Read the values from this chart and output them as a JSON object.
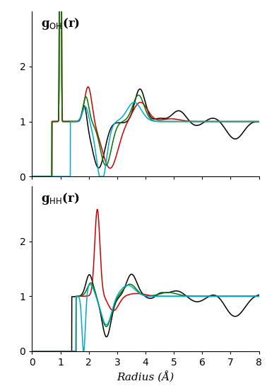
{
  "xlabel": "Radius (Å)",
  "xlim": [
    0,
    8
  ],
  "ylim": [
    0,
    3
  ],
  "yticks": [
    0,
    1,
    2
  ],
  "xticks": [
    0,
    1,
    2,
    3,
    4,
    5,
    6,
    7,
    8
  ],
  "colors": {
    "black": "#000000",
    "red": "#cc0000",
    "green": "#007700",
    "blue": "#00aacc"
  },
  "linewidth": 1.1
}
